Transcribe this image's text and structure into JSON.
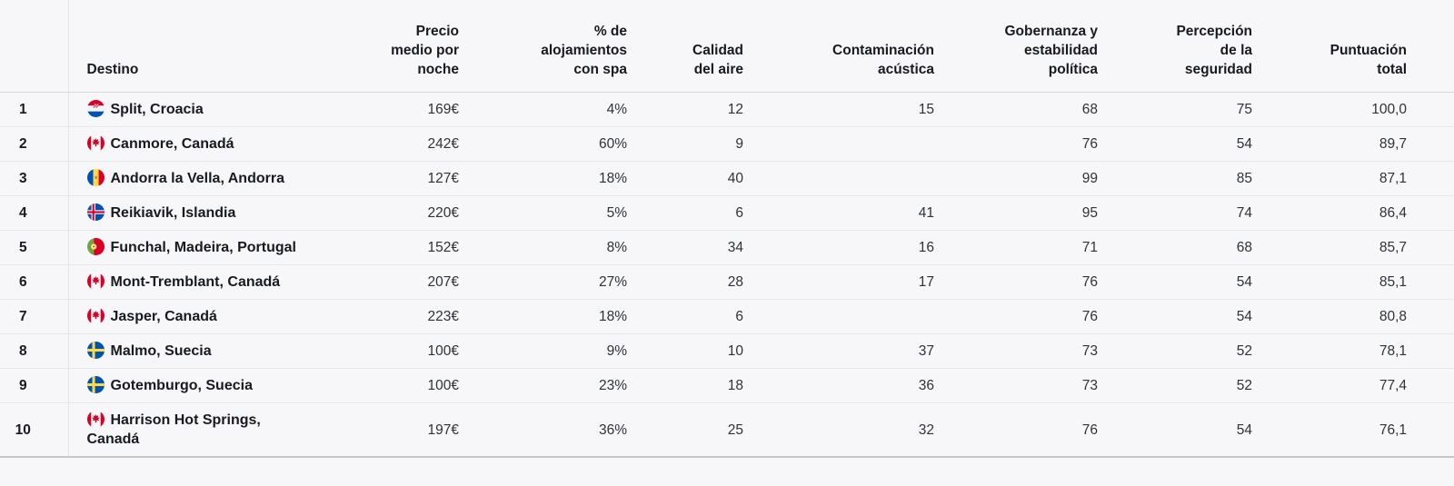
{
  "table": {
    "header": {
      "rank": "",
      "destino": "Destino",
      "precio": "Precio medio por noche",
      "spa": "% de alojamientos con spa",
      "aire": "Calidad del aire",
      "acustica": "Contaminación acústica",
      "gobernanza": "Gobernanza y estabilidad política",
      "seguridad": "Percepción de la seguridad",
      "total": "Puntuación total"
    },
    "rows": [
      {
        "rank": "1",
        "flag": "croatia",
        "destino": "Split, Croacia",
        "precio": "169€",
        "spa": "4%",
        "aire": "12",
        "acustica": "15",
        "gobernanza": "68",
        "seguridad": "75",
        "total": "100,0"
      },
      {
        "rank": "2",
        "flag": "canada",
        "destino": "Canmore, Canadá",
        "precio": "242€",
        "spa": "60%",
        "aire": "9",
        "acustica": "",
        "gobernanza": "76",
        "seguridad": "54",
        "total": "89,7"
      },
      {
        "rank": "3",
        "flag": "andorra",
        "destino": "Andorra la Vella, Andorra",
        "precio": "127€",
        "spa": "18%",
        "aire": "40",
        "acustica": "",
        "gobernanza": "99",
        "seguridad": "85",
        "total": "87,1"
      },
      {
        "rank": "4",
        "flag": "iceland",
        "destino": "Reikiavik, Islandia",
        "precio": "220€",
        "spa": "5%",
        "aire": "6",
        "acustica": "41",
        "gobernanza": "95",
        "seguridad": "74",
        "total": "86,4"
      },
      {
        "rank": "5",
        "flag": "portugal",
        "destino": "Funchal, Madeira, Portugal",
        "precio": "152€",
        "spa": "8%",
        "aire": "34",
        "acustica": "16",
        "gobernanza": "71",
        "seguridad": "68",
        "total": "85,7"
      },
      {
        "rank": "6",
        "flag": "canada",
        "destino": "Mont-Tremblant, Canadá",
        "precio": "207€",
        "spa": "27%",
        "aire": "28",
        "acustica": "17",
        "gobernanza": "76",
        "seguridad": "54",
        "total": "85,1"
      },
      {
        "rank": "7",
        "flag": "canada",
        "destino": "Jasper, Canadá",
        "precio": "223€",
        "spa": "18%",
        "aire": "6",
        "acustica": "",
        "gobernanza": "76",
        "seguridad": "54",
        "total": "80,8"
      },
      {
        "rank": "8",
        "flag": "sweden",
        "destino": "Malmo, Suecia",
        "precio": "100€",
        "spa": "9%",
        "aire": "10",
        "acustica": "37",
        "gobernanza": "73",
        "seguridad": "52",
        "total": "78,1"
      },
      {
        "rank": "9",
        "flag": "sweden",
        "destino": "Gotemburgo, Suecia",
        "precio": "100€",
        "spa": "23%",
        "aire": "18",
        "acustica": "36",
        "gobernanza": "73",
        "seguridad": "52",
        "total": "77,4"
      },
      {
        "rank": "10",
        "flag": "canada",
        "destino": "Harrison Hot Springs, Canadá",
        "precio": "197€",
        "spa": "36%",
        "aire": "25",
        "acustica": "32",
        "gobernanza": "76",
        "seguridad": "54",
        "total": "76,1"
      }
    ],
    "colors": {
      "background": "#f7f7f9",
      "row_divider": "#e6e7ea",
      "header_divider": "#d9dadd",
      "bottom_border": "#c6c7cb",
      "text_strong": "#181a1f",
      "text_value": "#2f3237"
    }
  }
}
